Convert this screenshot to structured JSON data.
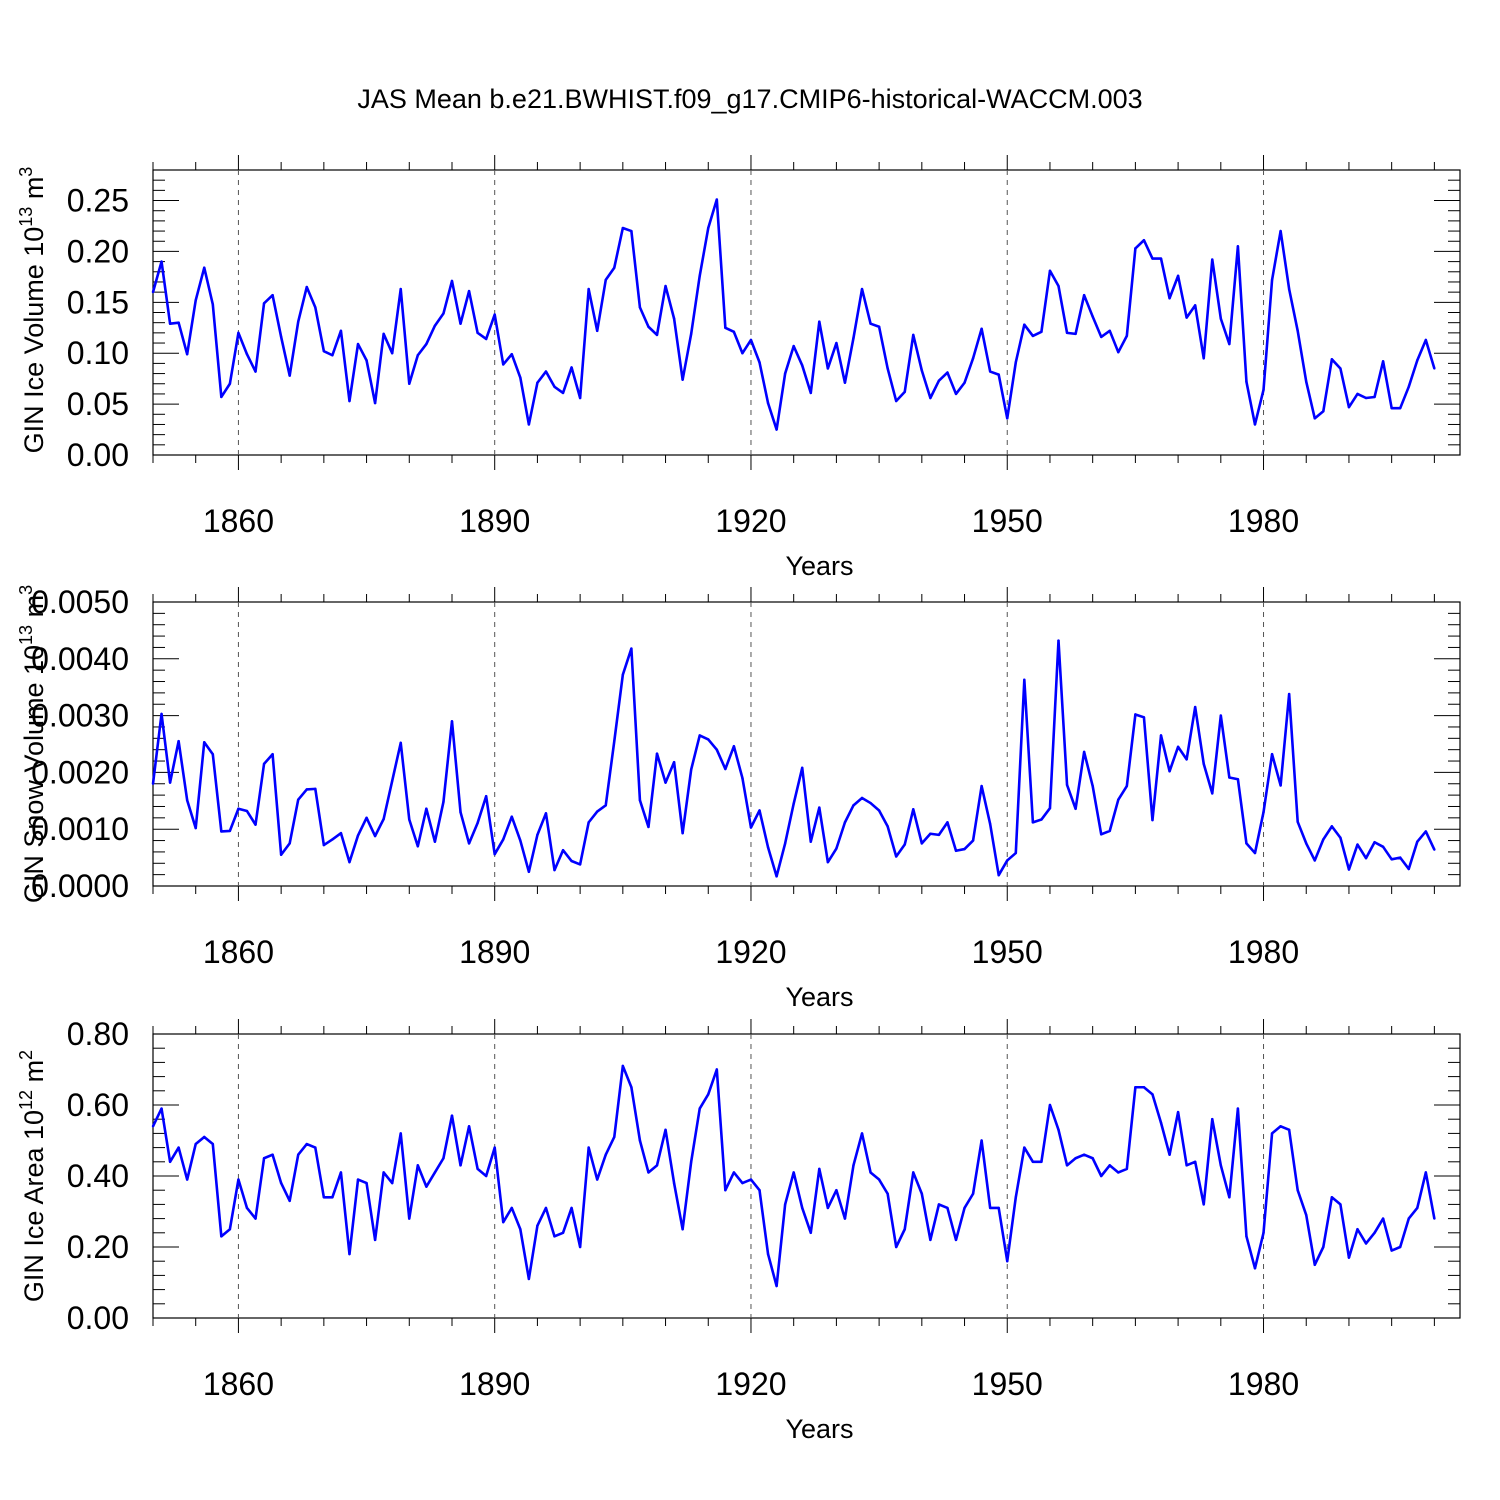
{
  "figure_title": "JAS Mean b.e21.BWHIST.f09_g17.CMIP6-historical-WACCM.003",
  "colors": {
    "series": "#0000ff",
    "axes": "#000000",
    "grid": "#555555",
    "background": "#ffffff"
  },
  "chart_data": [
    {
      "type": "line",
      "title": "JAS Mean b.e21.BWHIST.f09_g17.CMIP6-historical-WACCM.003",
      "xlabel": "Years",
      "ylabel": "GIN Ice Volume 10",
      "ylabel_exp": "13",
      "ylabel_unit": " m",
      "ylabel_unit_exp": "3",
      "xlim": [
        1850,
        2003
      ],
      "ylim": [
        0,
        0.28
      ],
      "xticks": [
        1860,
        1890,
        1920,
        1950,
        1980
      ],
      "xtick_labels": [
        "1860",
        "1890",
        "1920",
        "1950",
        "1980"
      ],
      "yticks": [
        0,
        0.05,
        0.1,
        0.15,
        0.2,
        0.25
      ],
      "ytick_labels": [
        "0.00",
        "0.05",
        "0.10",
        "0.15",
        "0.20",
        "0.25"
      ],
      "series": [
        {
          "name": "GIN Ice Volume",
          "x_start": 1850,
          "values": [
            0.16,
            0.19,
            0.129,
            0.13,
            0.099,
            0.152,
            0.184,
            0.148,
            0.057,
            0.07,
            0.12,
            0.099,
            0.082,
            0.149,
            0.157,
            0.116,
            0.078,
            0.131,
            0.165,
            0.145,
            0.102,
            0.098,
            0.122,
            0.053,
            0.109,
            0.093,
            0.051,
            0.119,
            0.1,
            0.163,
            0.07,
            0.098,
            0.109,
            0.127,
            0.139,
            0.171,
            0.129,
            0.161,
            0.12,
            0.114,
            0.138,
            0.089,
            0.099,
            0.076,
            0.03,
            0.071,
            0.082,
            0.067,
            0.061,
            0.086,
            0.056,
            0.163,
            0.122,
            0.172,
            0.184,
            0.223,
            0.22,
            0.145,
            0.126,
            0.118,
            0.166,
            0.134,
            0.074,
            0.119,
            0.176,
            0.223,
            0.251,
            0.125,
            0.121,
            0.1,
            0.113,
            0.091,
            0.051,
            0.025,
            0.08,
            0.107,
            0.088,
            0.061,
            0.131,
            0.085,
            0.11,
            0.071,
            0.115,
            0.163,
            0.129,
            0.126,
            0.085,
            0.053,
            0.062,
            0.118,
            0.083,
            0.056,
            0.073,
            0.081,
            0.06,
            0.071,
            0.095,
            0.124,
            0.082,
            0.079,
            0.036,
            0.091,
            0.128,
            0.117,
            0.121,
            0.181,
            0.166,
            0.12,
            0.119,
            0.157,
            0.136,
            0.116,
            0.122,
            0.101,
            0.117,
            0.203,
            0.211,
            0.193,
            0.193,
            0.154,
            0.176,
            0.135,
            0.147,
            0.095,
            0.192,
            0.134,
            0.109,
            0.205,
            0.072,
            0.03,
            0.064,
            0.172,
            0.22,
            0.163,
            0.122,
            0.072,
            0.036,
            0.043,
            0.094,
            0.085,
            0.047,
            0.06,
            0.056,
            0.057,
            0.092,
            0.046,
            0.046,
            0.067,
            0.093,
            0.113,
            0.085
          ]
        }
      ]
    },
    {
      "type": "line",
      "xlabel": "Years",
      "ylabel": "GIN Snow Volume 10",
      "ylabel_exp": "13",
      "ylabel_unit": " m",
      "ylabel_unit_exp": "3",
      "xlim": [
        1850,
        2003
      ],
      "ylim": [
        0,
        0.005
      ],
      "xticks": [
        1860,
        1890,
        1920,
        1950,
        1980
      ],
      "xtick_labels": [
        "1860",
        "1890",
        "1920",
        "1950",
        "1980"
      ],
      "yticks": [
        0,
        0.001,
        0.002,
        0.003,
        0.004,
        0.005
      ],
      "ytick_labels": [
        "0.0000",
        "0.0010",
        "0.0020",
        "0.0030",
        "0.0040",
        "0.0050"
      ],
      "series": [
        {
          "name": "GIN Snow Volume",
          "x_start": 1850,
          "values": [
            0.0018,
            0.00303,
            0.00182,
            0.00255,
            0.00151,
            0.00102,
            0.00253,
            0.00232,
            0.00096,
            0.00097,
            0.00136,
            0.00132,
            0.00108,
            0.00215,
            0.00232,
            0.00055,
            0.00075,
            0.00152,
            0.0017,
            0.00171,
            0.00072,
            0.00082,
            0.00093,
            0.00042,
            0.00089,
            0.0012,
            0.00088,
            0.00118,
            0.00185,
            0.00252,
            0.00117,
            0.0007,
            0.00136,
            0.00078,
            0.00148,
            0.0029,
            0.0013,
            0.00075,
            0.00111,
            0.00158,
            0.00056,
            0.00082,
            0.00122,
            0.0008,
            0.00025,
            0.0009,
            0.00128,
            0.00028,
            0.00063,
            0.00044,
            0.00038,
            0.00112,
            0.00131,
            0.00142,
            0.00255,
            0.00372,
            0.00418,
            0.00151,
            0.00104,
            0.00233,
            0.00182,
            0.00218,
            0.00093,
            0.00205,
            0.00265,
            0.00258,
            0.0024,
            0.00206,
            0.00246,
            0.0019,
            0.00103,
            0.00133,
            0.00068,
            0.00017,
            0.00075,
            0.00145,
            0.00208,
            0.00078,
            0.00138,
            0.00042,
            0.00066,
            0.00112,
            0.00142,
            0.00155,
            0.00146,
            0.00133,
            0.00105,
            0.00052,
            0.00073,
            0.00135,
            0.00075,
            0.00092,
            0.0009,
            0.00112,
            0.00062,
            0.00065,
            0.0008,
            0.00176,
            0.00109,
            0.00019,
            0.00045,
            0.00058,
            0.00363,
            0.00112,
            0.00117,
            0.00137,
            0.00432,
            0.00178,
            0.00136,
            0.00236,
            0.00176,
            0.00091,
            0.00097,
            0.00152,
            0.00176,
            0.00302,
            0.00297,
            0.00116,
            0.00265,
            0.00202,
            0.00245,
            0.00223,
            0.00315,
            0.00215,
            0.00163,
            0.003,
            0.00191,
            0.00188,
            0.00075,
            0.00058,
            0.0013,
            0.00232,
            0.00177,
            0.00338,
            0.00113,
            0.00075,
            0.00045,
            0.00082,
            0.00105,
            0.00085,
            0.00029,
            0.00073,
            0.00049,
            0.00077,
            0.00069,
            0.00047,
            0.0005,
            0.0003,
            0.00078,
            0.00096,
            0.00064
          ]
        }
      ]
    },
    {
      "type": "line",
      "xlabel": "Years",
      "ylabel": "GIN Ice Area 10",
      "ylabel_exp": "12",
      "ylabel_unit": " m",
      "ylabel_unit_exp": "2",
      "xlim": [
        1850,
        2003
      ],
      "ylim": [
        0,
        0.8
      ],
      "xticks": [
        1860,
        1890,
        1920,
        1950,
        1980
      ],
      "xtick_labels": [
        "1860",
        "1890",
        "1920",
        "1950",
        "1980"
      ],
      "yticks": [
        0,
        0.2,
        0.4,
        0.6,
        0.8
      ],
      "ytick_labels": [
        "0.00",
        "0.20",
        "0.40",
        "0.60",
        "0.80"
      ],
      "series": [
        {
          "name": "GIN Ice Area",
          "x_start": 1850,
          "values": [
            0.54,
            0.59,
            0.44,
            0.48,
            0.39,
            0.49,
            0.51,
            0.49,
            0.23,
            0.25,
            0.39,
            0.31,
            0.28,
            0.45,
            0.46,
            0.38,
            0.33,
            0.46,
            0.49,
            0.48,
            0.34,
            0.34,
            0.41,
            0.18,
            0.39,
            0.38,
            0.22,
            0.41,
            0.38,
            0.52,
            0.28,
            0.43,
            0.37,
            0.41,
            0.45,
            0.57,
            0.43,
            0.54,
            0.42,
            0.4,
            0.48,
            0.27,
            0.31,
            0.25,
            0.11,
            0.26,
            0.31,
            0.23,
            0.24,
            0.31,
            0.2,
            0.48,
            0.39,
            0.46,
            0.51,
            0.71,
            0.65,
            0.5,
            0.41,
            0.43,
            0.53,
            0.38,
            0.25,
            0.44,
            0.59,
            0.63,
            0.7,
            0.36,
            0.41,
            0.38,
            0.39,
            0.36,
            0.18,
            0.09,
            0.32,
            0.41,
            0.31,
            0.24,
            0.42,
            0.31,
            0.36,
            0.28,
            0.43,
            0.52,
            0.41,
            0.39,
            0.35,
            0.2,
            0.25,
            0.41,
            0.35,
            0.22,
            0.32,
            0.31,
            0.22,
            0.31,
            0.35,
            0.5,
            0.31,
            0.31,
            0.16,
            0.34,
            0.48,
            0.44,
            0.44,
            0.6,
            0.53,
            0.43,
            0.45,
            0.46,
            0.45,
            0.4,
            0.43,
            0.41,
            0.42,
            0.65,
            0.65,
            0.63,
            0.55,
            0.46,
            0.58,
            0.43,
            0.44,
            0.32,
            0.56,
            0.43,
            0.34,
            0.59,
            0.23,
            0.14,
            0.24,
            0.52,
            0.54,
            0.53,
            0.36,
            0.29,
            0.15,
            0.2,
            0.34,
            0.32,
            0.17,
            0.25,
            0.21,
            0.24,
            0.28,
            0.19,
            0.2,
            0.28,
            0.31,
            0.41,
            0.28
          ]
        }
      ]
    }
  ]
}
